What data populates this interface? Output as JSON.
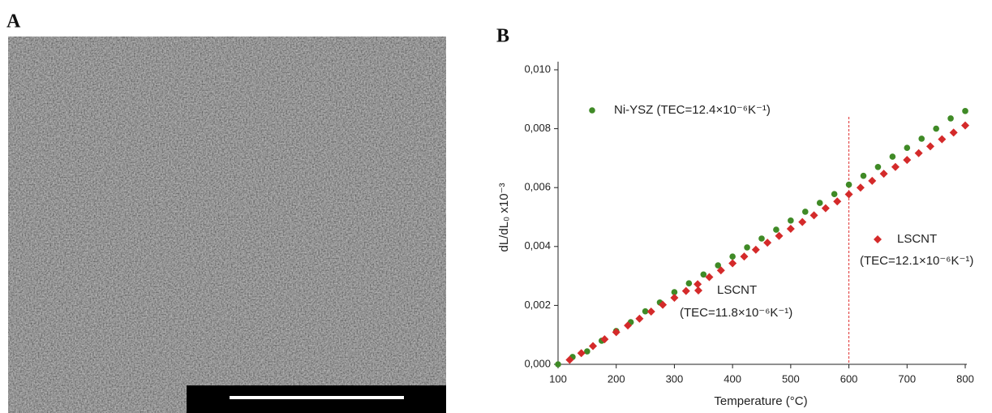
{
  "panel_labels": [
    "A",
    "B"
  ],
  "chart_data": {
    "type": "scatter",
    "x_label": "Temperature (°C)",
    "y_label": "dL/dL₀ x10⁻³",
    "xlim": [
      100,
      800
    ],
    "xticks": [
      100,
      200,
      300,
      400,
      500,
      600,
      700,
      800
    ],
    "ylim": [
      0,
      0.01
    ],
    "yticks": [
      {
        "value": 0,
        "label": "0,000"
      },
      {
        "value": 0.002,
        "label": "0,002"
      },
      {
        "value": 0.004,
        "label": "0,004"
      },
      {
        "value": 0.006,
        "label": "0,006"
      },
      {
        "value": 0.008,
        "label": "0,008"
      },
      {
        "value": 0.01,
        "label": "0,010"
      }
    ],
    "grid": false,
    "vline": 600,
    "vline_color": "#e03030",
    "series": [
      {
        "name": "Ni-YSZ (TEC=12.4×10⁻⁶K⁻¹)",
        "color": "#3f8a26",
        "marker": "circle",
        "x": [
          100,
          125,
          150,
          175,
          200,
          225,
          250,
          275,
          300,
          325,
          350,
          375,
          400,
          425,
          450,
          475,
          500,
          525,
          550,
          575,
          600,
          625,
          650,
          675,
          700,
          725,
          750,
          775,
          800
        ],
        "values": [
          0,
          0.00025,
          0.00044,
          0.0008,
          0.00113,
          0.00143,
          0.0018,
          0.0021,
          0.00245,
          0.00275,
          0.00305,
          0.00336,
          0.00366,
          0.00397,
          0.00427,
          0.00457,
          0.00488,
          0.00518,
          0.00548,
          0.00578,
          0.0061,
          0.0064,
          0.0067,
          0.00705,
          0.00735,
          0.00766,
          0.008,
          0.00835,
          0.0086
        ]
      },
      {
        "name": "LSCNT",
        "color": "#d42a2a",
        "marker": "diamond",
        "x": [
          120,
          140,
          160,
          180,
          200,
          220,
          240,
          260,
          280,
          300,
          320,
          340,
          360,
          380,
          400,
          420,
          440,
          460,
          480,
          500,
          520,
          540,
          560,
          580,
          600,
          620,
          640,
          660,
          680,
          700,
          720,
          740,
          760,
          780,
          800
        ],
        "values": [
          0.00015,
          0.00038,
          0.00062,
          0.00085,
          0.00109,
          0.00132,
          0.00155,
          0.00179,
          0.00202,
          0.00226,
          0.00249,
          0.00272,
          0.00296,
          0.00319,
          0.00343,
          0.00366,
          0.00389,
          0.00413,
          0.00436,
          0.0046,
          0.00483,
          0.00506,
          0.0053,
          0.00553,
          0.00577,
          0.006,
          0.00623,
          0.00647,
          0.0067,
          0.00694,
          0.00717,
          0.0074,
          0.00764,
          0.00787,
          0.00811
        ]
      }
    ],
    "annotations": [
      "(TEC=11.8×10⁻⁶K⁻¹)",
      "LSCNT",
      "(TEC=12.1×10⁻⁶K⁻¹)"
    ]
  }
}
